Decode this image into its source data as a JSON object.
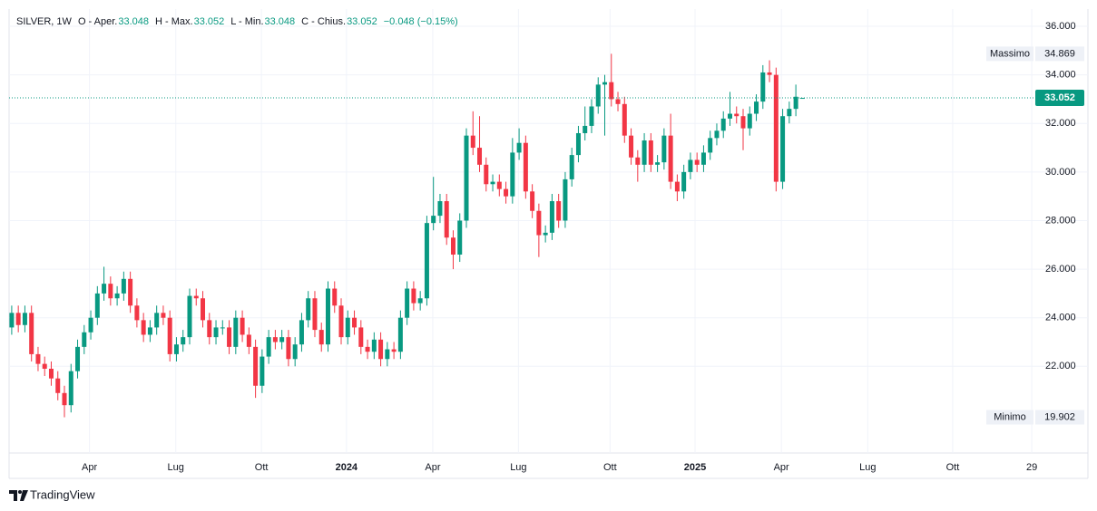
{
  "chart_data": {
    "type": "candlestick",
    "symbol": "SILVER, 1W",
    "legend_fields": [
      {
        "label": "O - Aper.",
        "value": 33.048
      },
      {
        "label": "H - Max.",
        "value": 33.052
      },
      {
        "label": "L - Min.",
        "value": 33.048
      },
      {
        "label": "C - Chius.",
        "value": 33.052
      }
    ],
    "change": "−0.048 (−0.15%)",
    "open": [
      23.6,
      24.2,
      23.7,
      24.2,
      22.5,
      22.1,
      21.9,
      21.5,
      20.9,
      20.4,
      21.8,
      22.8,
      23.4,
      24.0,
      25.0,
      25.4,
      24.8,
      25.0,
      25.6,
      24.5,
      23.9,
      23.3,
      23.6,
      24.2,
      24.0,
      22.5,
      22.9,
      23.2,
      24.9,
      24.8,
      23.9,
      23.2,
      23.6,
      23.6,
      22.8,
      24.0,
      23.3,
      22.8,
      21.2,
      22.4,
      23.2,
      23.0,
      23.2,
      22.3,
      22.9,
      23.9,
      24.8,
      23.5,
      22.9,
      25.2,
      24.5,
      23.2,
      24.0,
      23.6,
      22.8,
      22.6,
      23.1,
      22.3,
      22.7,
      22.6,
      24.0,
      25.2,
      24.6,
      24.8,
      27.9,
      28.2,
      28.8,
      27.3,
      26.6,
      28.0,
      31.5,
      31.0,
      30.3,
      29.5,
      29.6,
      29.3,
      29.0,
      30.8,
      31.2,
      29.2,
      28.4,
      27.4,
      27.5,
      28.8,
      28.0,
      29.7,
      30.7,
      31.6,
      31.9,
      32.7,
      33.6,
      33.7,
      33.0,
      32.8,
      31.5,
      30.6,
      30.3,
      31.3,
      30.3,
      30.4,
      31.5,
      29.6,
      29.2,
      30.0,
      30.5,
      30.3,
      30.8,
      31.4,
      31.7,
      32.2,
      32.4,
      32.3,
      31.8,
      32.4,
      32.9,
      34.1,
      34.0,
      29.6,
      32.3,
      32.6,
      33.048
    ],
    "high": [
      24.5,
      24.5,
      24.5,
      24.5,
      22.8,
      22.4,
      22.2,
      21.8,
      21.2,
      22.1,
      23.1,
      23.7,
      24.3,
      25.3,
      26.1,
      25.7,
      25.3,
      25.9,
      25.9,
      24.8,
      24.2,
      23.9,
      24.5,
      24.5,
      24.3,
      23.2,
      23.5,
      25.2,
      25.2,
      25.1,
      24.2,
      23.9,
      23.9,
      23.9,
      24.3,
      24.3,
      23.6,
      23.1,
      22.7,
      23.5,
      23.5,
      23.5,
      23.5,
      23.2,
      24.2,
      25.1,
      25.1,
      23.8,
      25.5,
      25.5,
      24.8,
      24.3,
      24.3,
      23.9,
      23.1,
      23.4,
      23.4,
      23.0,
      23.0,
      24.3,
      25.5,
      25.5,
      25.1,
      28.2,
      29.8,
      29.1,
      29.1,
      27.6,
      28.3,
      31.8,
      32.5,
      32.3,
      30.6,
      29.9,
      29.9,
      29.6,
      31.4,
      31.8,
      31.5,
      29.5,
      28.7,
      27.8,
      29.1,
      29.1,
      30.0,
      31.0,
      31.9,
      32.7,
      33.0,
      33.9,
      34.0,
      34.869,
      33.3,
      33.1,
      31.8,
      30.9,
      31.6,
      31.6,
      30.7,
      31.8,
      32.4,
      29.9,
      30.3,
      30.8,
      30.8,
      31.1,
      31.7,
      32.0,
      32.5,
      33.3,
      32.7,
      32.6,
      32.7,
      33.2,
      34.4,
      34.6,
      34.3,
      32.6,
      32.9,
      33.6,
      33.052
    ],
    "low": [
      23.3,
      23.4,
      23.4,
      22.2,
      21.8,
      21.6,
      21.2,
      20.6,
      19.902,
      20.1,
      21.5,
      22.5,
      23.1,
      23.7,
      24.7,
      24.5,
      24.5,
      24.7,
      24.2,
      23.6,
      23.0,
      23.0,
      23.3,
      23.7,
      22.2,
      22.2,
      22.6,
      22.9,
      24.5,
      23.6,
      22.9,
      22.9,
      23.3,
      22.5,
      22.5,
      23.0,
      22.5,
      20.7,
      20.9,
      22.1,
      22.7,
      22.7,
      22.0,
      22.0,
      22.6,
      23.6,
      23.2,
      22.6,
      22.6,
      24.2,
      22.9,
      22.9,
      23.3,
      22.5,
      22.3,
      22.3,
      22.0,
      22.0,
      22.3,
      22.3,
      23.7,
      24.3,
      24.3,
      24.5,
      27.6,
      27.9,
      27.0,
      26.0,
      26.3,
      27.7,
      30.7,
      30.0,
      29.2,
      29.2,
      29.0,
      28.7,
      28.7,
      30.5,
      28.9,
      28.1,
      26.5,
      27.1,
      27.2,
      27.7,
      27.7,
      29.4,
      30.4,
      31.3,
      31.6,
      32.4,
      31.5,
      32.7,
      32.5,
      31.2,
      30.3,
      29.6,
      30.0,
      30.0,
      30.0,
      30.1,
      29.3,
      28.8,
      28.9,
      29.7,
      30.0,
      30.0,
      30.5,
      31.1,
      31.4,
      31.9,
      32.0,
      30.9,
      31.5,
      32.1,
      32.6,
      33.7,
      29.2,
      29.3,
      32.0,
      32.3,
      33.048
    ],
    "close": [
      24.2,
      23.7,
      24.2,
      22.5,
      22.1,
      21.9,
      21.5,
      20.9,
      20.4,
      21.8,
      22.8,
      23.4,
      24.0,
      25.0,
      25.4,
      24.8,
      25.0,
      25.6,
      24.5,
      23.9,
      23.3,
      23.6,
      24.2,
      24.0,
      22.5,
      22.9,
      23.2,
      24.9,
      24.8,
      23.9,
      23.2,
      23.6,
      23.6,
      22.8,
      24.0,
      23.3,
      22.8,
      21.2,
      22.4,
      23.2,
      23.0,
      23.2,
      22.3,
      22.9,
      23.9,
      24.8,
      23.5,
      22.9,
      25.2,
      24.5,
      23.2,
      24.0,
      23.6,
      22.8,
      22.6,
      23.1,
      22.3,
      22.7,
      22.6,
      24.0,
      25.2,
      24.6,
      24.8,
      27.9,
      28.2,
      28.8,
      27.3,
      26.6,
      28.0,
      31.5,
      31.0,
      30.3,
      29.5,
      29.6,
      29.3,
      29.0,
      30.8,
      31.2,
      29.2,
      28.4,
      27.4,
      27.5,
      28.8,
      28.0,
      29.7,
      30.7,
      31.6,
      31.9,
      32.7,
      33.6,
      33.7,
      33.0,
      32.8,
      31.5,
      30.6,
      30.3,
      31.3,
      30.3,
      30.4,
      31.5,
      29.6,
      29.2,
      30.0,
      30.5,
      30.3,
      30.8,
      31.4,
      31.7,
      32.2,
      32.4,
      32.3,
      31.8,
      32.4,
      32.9,
      34.1,
      34.0,
      29.6,
      32.3,
      32.6,
      33.1,
      33.052
    ],
    "up_color": "#089981",
    "down_color": "#f23645",
    "xlim": [
      -0.4,
      155.2
    ],
    "xticks": [
      {
        "value": 11.8,
        "label": "Apr"
      },
      {
        "value": 24.9,
        "label": "Lug"
      },
      {
        "value": 37.9,
        "label": "Ott"
      },
      {
        "value": 50.8,
        "label": "2024"
      },
      {
        "value": 63.9,
        "label": "Apr"
      },
      {
        "value": 76.9,
        "label": "Lug"
      },
      {
        "value": 90.8,
        "label": "Ott"
      },
      {
        "value": 103.7,
        "label": "2025"
      },
      {
        "value": 116.8,
        "label": "Apr"
      },
      {
        "value": 129.9,
        "label": "Lug"
      },
      {
        "value": 142.8,
        "label": "Ott"
      },
      {
        "value": 154.8,
        "label": "29"
      }
    ],
    "ylim": [
      18.43,
      36.71
    ],
    "yticks": [
      {
        "value": 22,
        "label": "22.000"
      },
      {
        "value": 24,
        "label": "24.000"
      },
      {
        "value": 26,
        "label": "26.000"
      },
      {
        "value": 28,
        "label": "28.000"
      },
      {
        "value": 30,
        "label": "30.000"
      },
      {
        "value": 32,
        "label": "32.000"
      },
      {
        "value": 34,
        "label": "34.000"
      },
      {
        "value": 36,
        "label": "36.000"
      }
    ],
    "grid": true,
    "max_label": "Massimo",
    "max_value": 34.869,
    "min_label": "Minimo",
    "min_value": 19.902,
    "last_price": 33.052
  },
  "footer": {
    "brand": "TradingView"
  }
}
